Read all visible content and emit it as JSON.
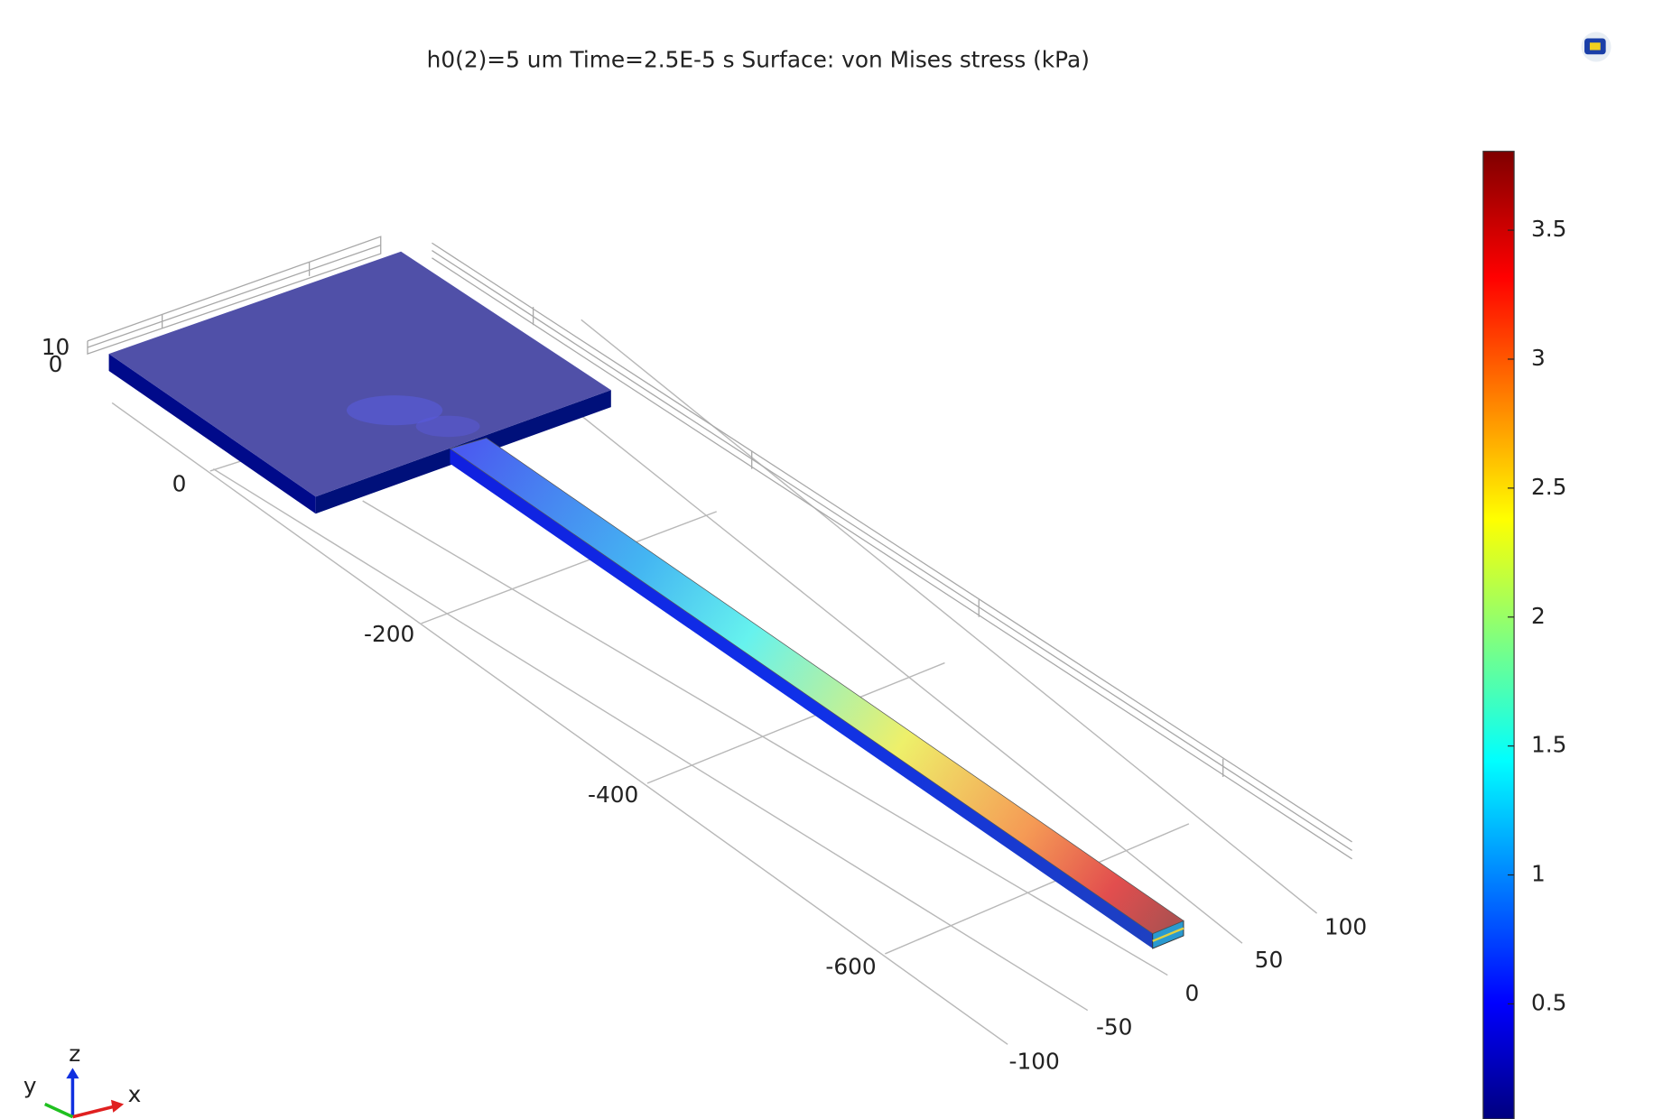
{
  "title": "h0(2)=5 um Time=2.5E-5 s   Surface: von Mises stress (kPa)",
  "colorbar": {
    "ticks": [
      "3.5",
      "3",
      "2.5",
      "2",
      "1.5",
      "1",
      "0.5"
    ]
  },
  "axes": {
    "z_ticks": [
      "10",
      "0"
    ],
    "x_ticks": [
      "0",
      "-200",
      "-400",
      "-600"
    ],
    "y_ticks": [
      "-100",
      "-50",
      "0",
      "50",
      "100"
    ],
    "triad": [
      "z",
      "y",
      "x"
    ]
  }
}
